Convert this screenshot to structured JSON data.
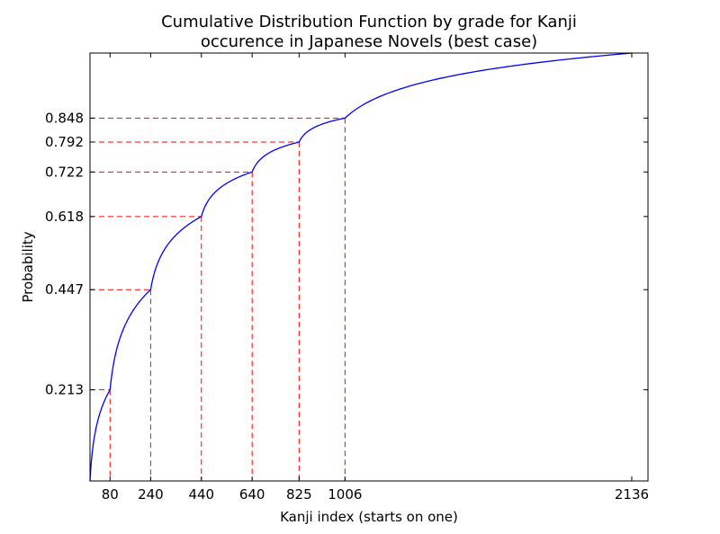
{
  "chart_data": {
    "type": "line",
    "title_lines": [
      "Cumulative Distribution Function by grade for Kanji",
      "occurence in Japanese Novels (best case)"
    ],
    "xlabel": "Kanji index (starts on one)",
    "ylabel": "Probability",
    "xlim": [
      1,
      2200
    ],
    "ylim": [
      0,
      1
    ],
    "x_ticks": [
      80,
      240,
      440,
      640,
      825,
      1006,
      2136
    ],
    "y_ticks": [
      "0.213",
      "0.447",
      "0.618",
      "0.722",
      "0.792",
      "0.848"
    ],
    "grade_boundaries": [
      {
        "x": 80,
        "y": 0.213
      },
      {
        "x": 240,
        "y": 0.447
      },
      {
        "x": 440,
        "y": 0.618
      },
      {
        "x": 640,
        "y": 0.722
      },
      {
        "x": 825,
        "y": 0.792
      },
      {
        "x": 1006,
        "y": 0.848
      }
    ],
    "end_point": {
      "x": 2136,
      "y": 1.0
    },
    "colors": {
      "curve": "#0000ff",
      "markers": "#ff0000",
      "axes": "#000000"
    },
    "grid": false
  }
}
